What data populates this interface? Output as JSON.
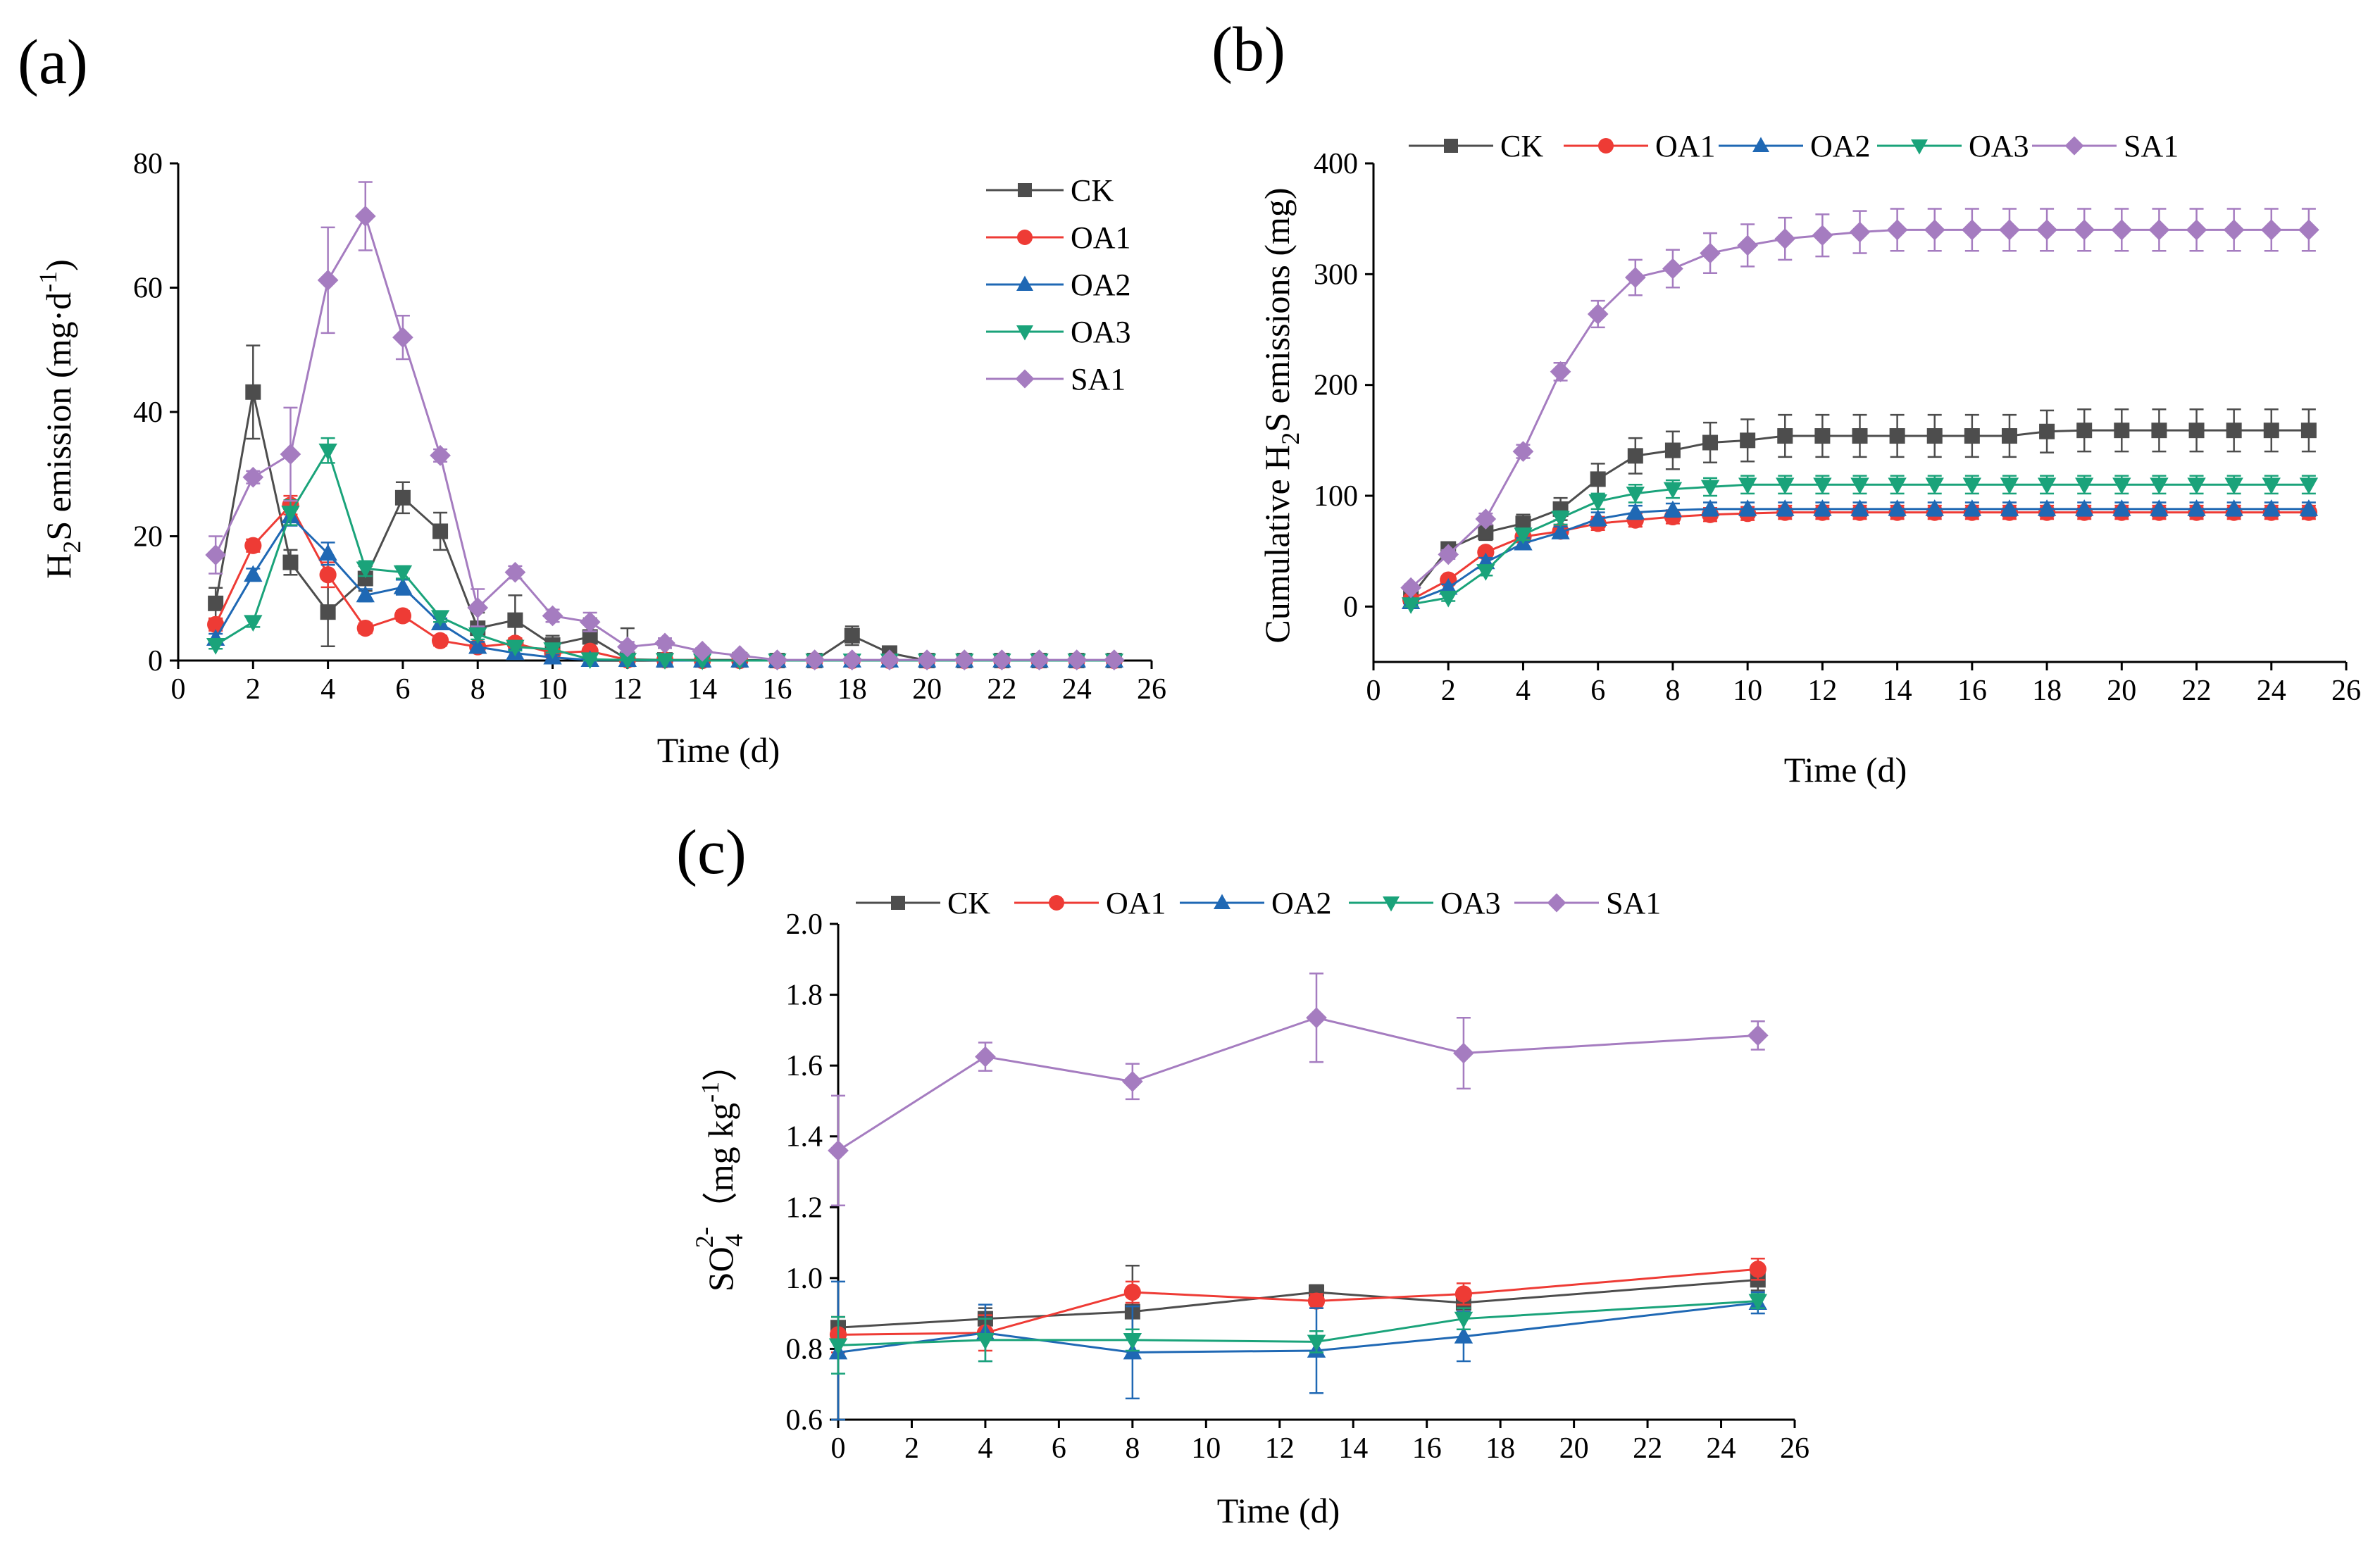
{
  "colors": {
    "CK": "#4d4d4d",
    "OA1": "#ee3b35",
    "OA2": "#1f68b4",
    "OA3": "#1aa37a",
    "SA1": "#a57cc0"
  },
  "chart_data": [
    {
      "id": "a",
      "type": "line",
      "panel_label": "(a)",
      "title": "",
      "xlabel": "Time (d)",
      "ylabel": "H2S emission (mg·d-1)",
      "ylabel_parts": {
        "pre": "H",
        "sub": "2",
        "mid": "S emission (mg·d",
        "sup": "-1",
        "post": ")"
      },
      "xlim": [
        0,
        26
      ],
      "ylim": [
        0,
        80
      ],
      "xticks": [
        0,
        2,
        4,
        6,
        8,
        10,
        12,
        14,
        16,
        18,
        20,
        22,
        24,
        26
      ],
      "xtick_labels": [
        "0",
        "2",
        "4",
        "6",
        "8",
        "10",
        "12",
        "14",
        "16",
        "18",
        "20",
        "22",
        "24",
        "26"
      ],
      "yticks": [
        0,
        20,
        40,
        60,
        80
      ],
      "ytick_labels": [
        "0",
        "20",
        "40",
        "60",
        "80"
      ],
      "legend_placement": "top-right, vertical",
      "series": [
        {
          "name": "CK",
          "marker": "square",
          "x": [
            1,
            2,
            3,
            4,
            5,
            6,
            7,
            8,
            9,
            10,
            11,
            12,
            13,
            14,
            15,
            16,
            17,
            18,
            19,
            20,
            21,
            22,
            23,
            24,
            25
          ],
          "y": [
            9.2,
            43.2,
            15.8,
            7.8,
            13.2,
            26.2,
            20.8,
            5.2,
            6.5,
            2.5,
            3.8,
            0.2,
            0.1,
            0.1,
            0.1,
            0,
            0,
            4.0,
            1.2,
            0,
            0,
            0,
            0,
            0,
            0
          ],
          "err": [
            2.5,
            7.5,
            2.0,
            5.5,
            2.0,
            2.5,
            3.0,
            2.5,
            4.0,
            1.5,
            3.0,
            5.0,
            0.3,
            0.3,
            0.3,
            0,
            0,
            1.5,
            0.8,
            0,
            0,
            0,
            0,
            0,
            0
          ]
        },
        {
          "name": "OA1",
          "marker": "circle",
          "x": [
            1,
            2,
            3,
            4,
            5,
            6,
            7,
            8,
            9,
            10,
            11,
            12,
            13,
            14,
            15,
            16,
            17,
            18,
            19,
            20,
            21,
            22,
            23,
            24,
            25
          ],
          "y": [
            5.8,
            18.5,
            25.0,
            13.8,
            5.2,
            7.2,
            3.2,
            2.2,
            2.8,
            1.2,
            1.5,
            0.1,
            0.1,
            0,
            0,
            0,
            0,
            0,
            0,
            0,
            0,
            0,
            0,
            0,
            0
          ],
          "err": [
            1.0,
            1.0,
            1.5,
            2.0,
            0.8,
            0.8,
            0.8,
            0.8,
            0.8,
            0.6,
            0.6,
            0.2,
            0.2,
            0,
            0,
            0,
            0,
            0,
            0,
            0,
            0,
            0,
            0,
            0,
            0
          ]
        },
        {
          "name": "OA2",
          "marker": "triangle-up",
          "x": [
            1,
            2,
            3,
            4,
            5,
            6,
            7,
            8,
            9,
            10,
            11,
            12,
            13,
            14,
            15,
            16,
            17,
            18,
            19,
            20,
            21,
            22,
            23,
            24,
            25
          ],
          "y": [
            3.5,
            13.8,
            23.2,
            17.2,
            10.5,
            11.8,
            6.0,
            2.2,
            1.2,
            0.5,
            0.1,
            0.1,
            0,
            0,
            0,
            0,
            0,
            0,
            0,
            0,
            0,
            0,
            0,
            0,
            0
          ],
          "err": [
            0.8,
            1.0,
            1.5,
            1.8,
            1.0,
            1.2,
            0.8,
            0.8,
            0.6,
            0.4,
            0.2,
            0.2,
            0,
            0,
            0,
            0,
            0,
            0,
            0,
            0,
            0,
            0,
            0,
            0,
            0
          ]
        },
        {
          "name": "OA3",
          "marker": "triangle-down",
          "x": [
            1,
            2,
            3,
            4,
            5,
            6,
            7,
            8,
            9,
            10,
            11,
            12,
            13,
            14,
            15,
            16,
            17,
            18,
            19,
            20,
            21,
            22,
            23,
            24,
            25
          ],
          "y": [
            2.5,
            6.2,
            23.8,
            33.8,
            14.8,
            14.2,
            7.0,
            4.2,
            2.2,
            1.8,
            0.2,
            0.1,
            0.1,
            0,
            0,
            0,
            0,
            0,
            0,
            0,
            0,
            0,
            0,
            0,
            0
          ],
          "err": [
            0.6,
            0.8,
            2.0,
            2.0,
            1.2,
            1.0,
            0.8,
            0.8,
            0.6,
            0.5,
            0.2,
            0.2,
            0.2,
            0,
            0,
            0,
            0,
            0,
            0,
            0,
            0,
            0,
            0,
            0,
            0
          ]
        },
        {
          "name": "SA1",
          "marker": "diamond",
          "x": [
            1,
            2,
            3,
            4,
            5,
            6,
            7,
            8,
            9,
            10,
            11,
            12,
            13,
            14,
            15,
            16,
            17,
            18,
            19,
            20,
            21,
            22,
            23,
            24,
            25
          ],
          "y": [
            17.0,
            29.5,
            33.2,
            61.2,
            71.5,
            52.0,
            33.0,
            8.5,
            14.2,
            7.2,
            6.2,
            2.2,
            2.8,
            1.5,
            0.8,
            0.1,
            0.1,
            0.1,
            0.1,
            0.1,
            0.1,
            0.1,
            0.1,
            0.1,
            0.1
          ],
          "err": [
            3.0,
            1.0,
            7.5,
            8.5,
            5.5,
            3.5,
            1.0,
            3.0,
            1.0,
            1.0,
            1.5,
            0.8,
            0.8,
            0.5,
            0.5,
            0.2,
            0.2,
            0.2,
            0.2,
            0.2,
            0.2,
            0.2,
            0.2,
            0.2,
            0.2
          ]
        }
      ]
    },
    {
      "id": "b",
      "type": "line",
      "panel_label": "(b)",
      "title": "",
      "xlabel": "Time (d)",
      "ylabel": "Cumulative H2S emissions (mg)",
      "ylabel_parts": {
        "pre": "Cumulative H",
        "sub": "2",
        "mid": "S emissions (mg)",
        "sup": "",
        "post": ""
      },
      "xlim": [
        0,
        26
      ],
      "ylim": [
        -50,
        400
      ],
      "xticks": [
        0,
        2,
        4,
        6,
        8,
        10,
        12,
        14,
        16,
        18,
        20,
        22,
        24,
        26
      ],
      "xtick_labels": [
        "0",
        "2",
        "4",
        "6",
        "8",
        "10",
        "12",
        "14",
        "16",
        "18",
        "20",
        "22",
        "24",
        "26"
      ],
      "yticks": [
        0,
        100,
        200,
        300,
        400
      ],
      "ytick_labels": [
        "0",
        "100",
        "200",
        "300",
        "400"
      ],
      "legend_placement": "top, horizontal",
      "series": [
        {
          "name": "CK",
          "marker": "square",
          "x": [
            1,
            2,
            3,
            4,
            5,
            6,
            7,
            8,
            9,
            10,
            11,
            12,
            13,
            14,
            15,
            16,
            17,
            18,
            19,
            20,
            21,
            22,
            23,
            24,
            25
          ],
          "y": [
            9,
            52,
            67,
            75,
            88,
            115,
            136,
            141,
            148,
            150,
            154,
            154,
            154,
            154,
            154,
            154,
            154,
            158,
            159,
            159,
            159,
            159,
            159,
            159,
            159
          ],
          "err": [
            4,
            5,
            7,
            8,
            10,
            14,
            16,
            17,
            18,
            19,
            19,
            19,
            19,
            19,
            19,
            19,
            19,
            19,
            19,
            19,
            19,
            19,
            19,
            19,
            19
          ]
        },
        {
          "name": "OA1",
          "marker": "circle",
          "x": [
            1,
            2,
            3,
            4,
            5,
            6,
            7,
            8,
            9,
            10,
            11,
            12,
            13,
            14,
            15,
            16,
            17,
            18,
            19,
            20,
            21,
            22,
            23,
            24,
            25
          ],
          "y": [
            6,
            24,
            49,
            63,
            68,
            75,
            78,
            81,
            83,
            84,
            85,
            85,
            85,
            85,
            85,
            85,
            85,
            85,
            85,
            85,
            85,
            85,
            85,
            85,
            85
          ],
          "err": [
            2,
            3,
            4,
            5,
            5,
            6,
            6,
            6,
            6,
            6,
            6,
            6,
            6,
            6,
            6,
            6,
            6,
            6,
            6,
            6,
            6,
            6,
            6,
            6,
            6
          ]
        },
        {
          "name": "OA2",
          "marker": "triangle-up",
          "x": [
            1,
            2,
            3,
            4,
            5,
            6,
            7,
            8,
            9,
            10,
            11,
            12,
            13,
            14,
            15,
            16,
            17,
            18,
            19,
            20,
            21,
            22,
            23,
            24,
            25
          ],
          "y": [
            4,
            17,
            40,
            57,
            67,
            79,
            85,
            87,
            88,
            88,
            88,
            88,
            88,
            88,
            88,
            88,
            88,
            88,
            88,
            88,
            88,
            88,
            88,
            88,
            88
          ],
          "err": [
            2,
            3,
            4,
            5,
            5,
            6,
            6,
            6,
            6,
            6,
            6,
            6,
            6,
            6,
            6,
            6,
            6,
            6,
            6,
            6,
            6,
            6,
            6,
            6,
            6
          ]
        },
        {
          "name": "OA3",
          "marker": "triangle-down",
          "x": [
            1,
            2,
            3,
            4,
            5,
            6,
            7,
            8,
            9,
            10,
            11,
            12,
            13,
            14,
            15,
            16,
            17,
            18,
            19,
            20,
            21,
            22,
            23,
            24,
            25
          ],
          "y": [
            2,
            8,
            32,
            65,
            80,
            95,
            102,
            106,
            108,
            110,
            110,
            110,
            110,
            110,
            110,
            110,
            110,
            110,
            110,
            110,
            110,
            110,
            110,
            110,
            110
          ],
          "err": [
            2,
            3,
            4,
            5,
            6,
            7,
            8,
            8,
            8,
            8,
            8,
            8,
            8,
            8,
            8,
            8,
            8,
            8,
            8,
            8,
            8,
            8,
            8,
            8,
            8
          ]
        },
        {
          "name": "SA1",
          "marker": "diamond",
          "x": [
            1,
            2,
            3,
            4,
            5,
            6,
            7,
            8,
            9,
            10,
            11,
            12,
            13,
            14,
            15,
            16,
            17,
            18,
            19,
            20,
            21,
            22,
            23,
            24,
            25
          ],
          "y": [
            17,
            47,
            79,
            140,
            212,
            264,
            297,
            305,
            319,
            326,
            332,
            335,
            338,
            340,
            340,
            340,
            340,
            340,
            340,
            340,
            340,
            340,
            340,
            340,
            340
          ],
          "err": [
            3,
            4,
            5,
            6,
            8,
            12,
            16,
            17,
            18,
            19,
            19,
            19,
            19,
            19,
            19,
            19,
            19,
            19,
            19,
            19,
            19,
            19,
            19,
            19,
            19
          ]
        }
      ]
    },
    {
      "id": "c",
      "type": "line",
      "panel_label": "(c)",
      "title": "",
      "xlabel": "Time (d)",
      "ylabel": "SO42-（mg kg-1）",
      "ylabel_parts": {
        "pre": "SO",
        "sub": "4",
        "sup1": "2-",
        "mid": "（mg kg",
        "sup": "-1",
        "post": "）"
      },
      "xlim": [
        0,
        26
      ],
      "ylim": [
        0.6,
        2.0
      ],
      "xticks": [
        0,
        2,
        4,
        6,
        8,
        10,
        12,
        14,
        16,
        18,
        20,
        22,
        24,
        26
      ],
      "xtick_labels": [
        "0",
        "2",
        "4",
        "6",
        "8",
        "10",
        "12",
        "14",
        "16",
        "18",
        "20",
        "22",
        "24",
        "26"
      ],
      "yticks": [
        0.6,
        0.8,
        1.0,
        1.2,
        1.4,
        1.6,
        1.8,
        2.0
      ],
      "ytick_labels": [
        "0.6",
        "0.8",
        "1.0",
        "1.2",
        "1.4",
        "1.6",
        "1.8",
        "2.0"
      ],
      "legend_placement": "top, horizontal",
      "series": [
        {
          "name": "CK",
          "marker": "square",
          "x": [
            0,
            4,
            8,
            13,
            17,
            25
          ],
          "y": [
            0.86,
            0.885,
            0.905,
            0.96,
            0.93,
            0.995
          ],
          "err": [
            0.03,
            0.03,
            0.13,
            0.02,
            0.03,
            0.03
          ]
        },
        {
          "name": "OA1",
          "marker": "circle",
          "x": [
            0,
            4,
            8,
            13,
            17,
            25
          ],
          "y": [
            0.84,
            0.845,
            0.96,
            0.935,
            0.955,
            1.025
          ],
          "err": [
            0.05,
            0.05,
            0.03,
            0.02,
            0.03,
            0.03
          ]
        },
        {
          "name": "OA2",
          "marker": "triangle-up",
          "x": [
            0,
            4,
            8,
            13,
            17,
            25
          ],
          "y": [
            0.79,
            0.845,
            0.79,
            0.795,
            0.835,
            0.93
          ],
          "err": [
            0.2,
            0.08,
            0.13,
            0.12,
            0.07,
            0.03
          ]
        },
        {
          "name": "OA3",
          "marker": "triangle-down",
          "x": [
            0,
            4,
            8,
            13,
            17,
            25
          ],
          "y": [
            0.81,
            0.825,
            0.825,
            0.82,
            0.885,
            0.935
          ],
          "err": [
            0.08,
            0.06,
            0.03,
            0.03,
            0.03,
            0.02
          ]
        },
        {
          "name": "SA1",
          "marker": "diamond",
          "x": [
            0,
            4,
            8,
            13,
            17,
            25
          ],
          "y": [
            1.36,
            1.625,
            1.555,
            1.735,
            1.635,
            1.685
          ],
          "err": [
            0.155,
            0.04,
            0.05,
            0.125,
            0.1,
            0.04
          ]
        }
      ]
    }
  ]
}
